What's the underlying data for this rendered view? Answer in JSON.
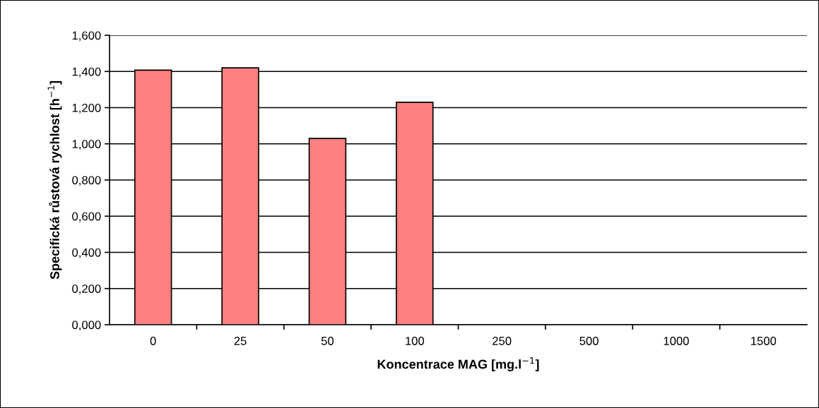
{
  "chart_data": {
    "type": "bar",
    "xlabel": "Koncentrace MAG [mg.l$^{−1}$]",
    "ylabel": "Specifická růstová rychlost [h$^{−1}$]",
    "categories": [
      "0",
      "25",
      "50",
      "100",
      "250",
      "500",
      "1000",
      "1500"
    ],
    "values": [
      1.407,
      1.42,
      1.03,
      1.23,
      null,
      null,
      null,
      null
    ],
    "color": "#ff8080",
    "ylim": [
      0,
      1.6
    ],
    "yticks": [
      {
        "value": 0,
        "label": "0,000"
      },
      {
        "value": 0.2,
        "label": "0,200"
      },
      {
        "value": 0.4,
        "label": "0,400"
      },
      {
        "value": 0.6,
        "label": "0,600"
      },
      {
        "value": 0.8,
        "label": "0,800"
      },
      {
        "value": 1.0,
        "label": "1,000"
      },
      {
        "value": 1.2,
        "label": "1,200"
      },
      {
        "value": 1.4,
        "label": "1,400"
      },
      {
        "value": 1.6,
        "label": "1,600"
      }
    ],
    "grid": "y",
    "legend": false
  }
}
